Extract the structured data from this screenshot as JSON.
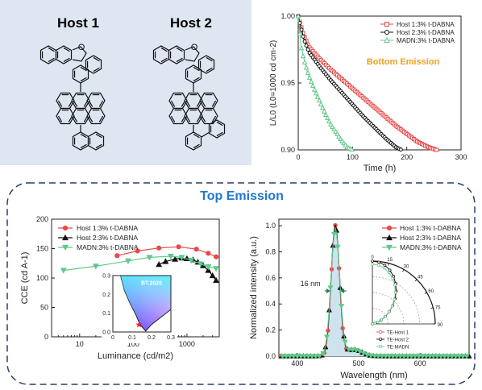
{
  "hosts_panel": {
    "host1_label": "Host 1",
    "host2_label": "Host 2"
  },
  "top_emission_title": "Top Emission",
  "chart_data": [
    {
      "type": "line",
      "id": "lifetime",
      "xlabel": "Time (h)",
      "ylabel": "L/L0 (L0=1000 cd cm-2)",
      "annotation": "Bottom Emission",
      "xlim": [
        0,
        300
      ],
      "ylim": [
        0.9,
        1.0
      ],
      "xticks": [
        0,
        100,
        200,
        300
      ],
      "yticks": [
        0.9,
        0.95,
        1.0
      ],
      "legend": "top-right",
      "series": [
        {
          "name": "Host 1:3% t-DABNA",
          "color": "#e84a4a",
          "marker": "square",
          "x": [
            0,
            10,
            20,
            40,
            60,
            80,
            100,
            120,
            140,
            160,
            180,
            200,
            220,
            240,
            255
          ],
          "y": [
            1.0,
            0.986,
            0.977,
            0.968,
            0.96,
            0.953,
            0.946,
            0.939,
            0.932,
            0.925,
            0.918,
            0.912,
            0.906,
            0.902,
            0.9
          ]
        },
        {
          "name": "Host 2:3% t-DABNA",
          "color": "#111111",
          "marker": "circle",
          "x": [
            0,
            10,
            20,
            40,
            60,
            80,
            100,
            120,
            140,
            160,
            180,
            190
          ],
          "y": [
            1.0,
            0.983,
            0.973,
            0.962,
            0.952,
            0.943,
            0.934,
            0.925,
            0.917,
            0.909,
            0.902,
            0.9
          ]
        },
        {
          "name": "MADN:3% t-DABNA",
          "color": "#5fc98a",
          "marker": "triangle",
          "x": [
            0,
            5,
            10,
            20,
            30,
            40,
            50,
            60,
            70,
            80,
            90,
            100
          ],
          "y": [
            1.0,
            0.978,
            0.968,
            0.955,
            0.945,
            0.936,
            0.927,
            0.919,
            0.913,
            0.907,
            0.902,
            0.9
          ]
        }
      ]
    },
    {
      "type": "line",
      "id": "cce",
      "xlabel": "Luminance (cd/m2)",
      "ylabel": "CCE (cd A-1)",
      "xscale": "log",
      "xlim": [
        3,
        4000
      ],
      "ylim": [
        0,
        200
      ],
      "xticks": [
        10,
        100,
        1000
      ],
      "yticks": [
        0,
        50,
        100,
        150,
        200
      ],
      "legend": "top-left",
      "series": [
        {
          "name": "Host 1:3% t-DABNA",
          "color": "#e84a4a",
          "marker": "circle",
          "x": [
            50,
            120,
            300,
            700,
            1500,
            2500,
            3500
          ],
          "y": [
            138,
            146,
            151,
            153,
            149,
            142,
            136
          ]
        },
        {
          "name": "Host 2:3% t-DABNA",
          "color": "#111111",
          "marker": "triangle",
          "x": [
            300,
            400,
            600,
            800,
            1000,
            1300,
            1600,
            2000,
            2500,
            3000,
            3500
          ],
          "y": [
            123,
            128,
            132,
            134,
            133,
            131,
            127,
            121,
            113,
            104,
            96
          ]
        },
        {
          "name": "MADN:3% t-DABNA",
          "color": "#5fc98a",
          "marker": "triangle-down",
          "x": [
            5,
            20,
            80,
            200,
            500,
            800,
            1200,
            1800,
            2500,
            3500
          ],
          "y": [
            113,
            120,
            129,
            135,
            137,
            135,
            130,
            124,
            119,
            116
          ]
        }
      ],
      "inset": {
        "label": "BT.2020",
        "xlim": [
          0,
          0.3
        ],
        "ylim": [
          0,
          0.3
        ],
        "xticks": [
          0,
          0.1,
          0.2,
          0.3
        ],
        "yticks": [
          0.0,
          0.1,
          0.2,
          0.3
        ]
      }
    },
    {
      "type": "line",
      "id": "el_spectrum",
      "xlabel": "Wavelength (nm)",
      "ylabel": "Normalized intensity (a.u.)",
      "xlim": [
        370,
        680
      ],
      "ylim": [
        0,
        1.05
      ],
      "xticks": [
        400,
        500,
        600
      ],
      "yticks": [
        0.0,
        0.2,
        0.4,
        0.6,
        0.8,
        1.0
      ],
      "legend": "top-right",
      "fwhm_label": "16 nm",
      "peak_nm": 462,
      "series": [
        {
          "name": "Host 1:3% t-DABNA",
          "color": "#e84a4a",
          "marker": "circle"
        },
        {
          "name": "Host 2:3% t-DABNA",
          "color": "#111111",
          "marker": "triangle"
        },
        {
          "name": "MADN:3% t-DABNA",
          "color": "#5fc98a",
          "marker": "triangle-down"
        }
      ],
      "polar_inset": {
        "angle_ticks": [
          "0",
          "15",
          "30",
          "45",
          "60",
          "75",
          "90"
        ],
        "legend": [
          "TE-Host 1",
          "TE-Host 2",
          "TE-MADN"
        ]
      }
    }
  ]
}
